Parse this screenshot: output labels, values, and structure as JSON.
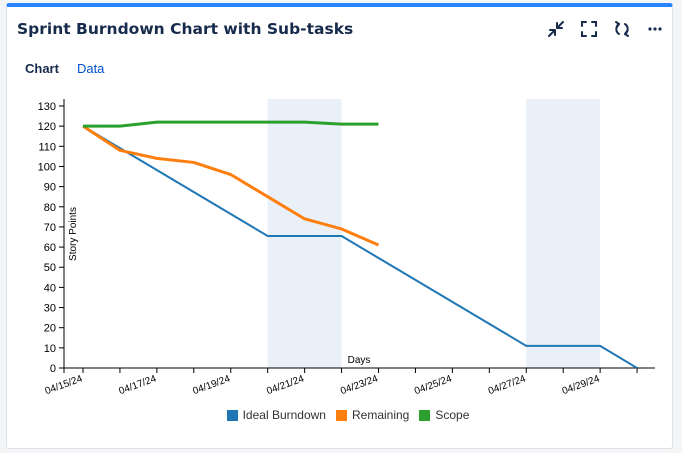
{
  "header": {
    "title": "Sprint Burndown Chart with Sub-tasks"
  },
  "toolbar": {
    "icons": [
      "collapse-icon",
      "fullscreen-icon",
      "refresh-icon",
      "more-icon"
    ]
  },
  "tabs": [
    {
      "label": "Chart",
      "active": true
    },
    {
      "label": "Data",
      "active": false
    }
  ],
  "colors": {
    "ideal": "#1f77b4",
    "remaining": "#ff7f0e",
    "scope": "#2ca02c",
    "weekend": "#eaf0f8",
    "accent": "#2684ff"
  },
  "chart_data": {
    "type": "line",
    "xlabel": "Days",
    "ylabel": "Story Points",
    "ylim": [
      0,
      130
    ],
    "xlim": [
      "04/15/24",
      "04/30/24"
    ],
    "x_tick_labels": [
      "04/15/24",
      "04/17/24",
      "04/19/24",
      "04/21/24",
      "04/23/24",
      "04/25/24",
      "04/27/24",
      "04/29/24"
    ],
    "y_ticks": [
      0,
      10,
      20,
      30,
      40,
      50,
      60,
      70,
      80,
      90,
      100,
      110,
      120,
      130
    ],
    "shaded_ranges": [
      [
        "04/20/24",
        "04/22/24"
      ],
      [
        "04/27/24",
        "04/29/24"
      ]
    ],
    "legend_position": "bottom",
    "series": [
      {
        "name": "Ideal Burndown",
        "points": [
          [
            "04/15/24",
            120
          ],
          [
            "04/20/24",
            65.5
          ],
          [
            "04/22/24",
            65.5
          ],
          [
            "04/27/24",
            11
          ],
          [
            "04/29/24",
            11
          ],
          [
            "04/30/24",
            0
          ]
        ]
      },
      {
        "name": "Remaining",
        "points": [
          [
            "04/15/24",
            120
          ],
          [
            "04/16/24",
            108
          ],
          [
            "04/17/24",
            104
          ],
          [
            "04/18/24",
            102
          ],
          [
            "04/19/24",
            96
          ],
          [
            "04/20/24",
            85
          ],
          [
            "04/21/24",
            74
          ],
          [
            "04/22/24",
            69
          ],
          [
            "04/23/24",
            61
          ]
        ]
      },
      {
        "name": "Scope",
        "points": [
          [
            "04/15/24",
            120
          ],
          [
            "04/16/24",
            120
          ],
          [
            "04/17/24",
            122
          ],
          [
            "04/18/24",
            122
          ],
          [
            "04/19/24",
            122
          ],
          [
            "04/20/24",
            122
          ],
          [
            "04/21/24",
            122
          ],
          [
            "04/22/24",
            121
          ],
          [
            "04/23/24",
            121
          ]
        ]
      }
    ]
  }
}
